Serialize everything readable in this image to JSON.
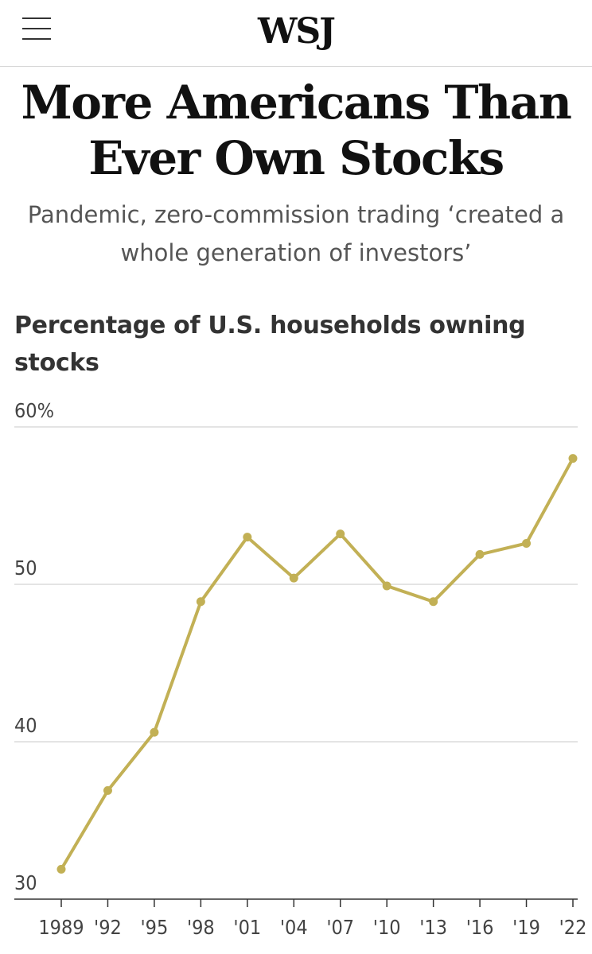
{
  "header": {
    "logo_text": "WSJ",
    "menu_icon": "hamburger-menu-icon"
  },
  "article": {
    "headline": "More Americans Than Ever Own Stocks",
    "dek": "Pandemic, zero-commission trading ‘created a whole generation of investors’"
  },
  "colors": {
    "line": "#c2b055",
    "grid": "#dcdcdc",
    "axis": "#333333"
  },
  "chart_data": {
    "type": "line",
    "title": "Percentage of U.S. households owning stocks",
    "xlabel": "",
    "ylabel": "",
    "x": [
      1989,
      1992,
      1995,
      1998,
      2001,
      2004,
      2007,
      2010,
      2013,
      2016,
      2019,
      2022
    ],
    "categories": [
      "1989",
      "'92",
      "'95",
      "'98",
      "'01",
      "'04",
      "'07",
      "'10",
      "'13",
      "'16",
      "'19",
      "'22"
    ],
    "values": [
      31.9,
      36.9,
      40.6,
      48.9,
      53.0,
      50.4,
      53.2,
      49.9,
      48.9,
      51.9,
      52.6,
      58.0
    ],
    "y_ticks": [
      {
        "value": 60,
        "label": "60%"
      },
      {
        "value": 50,
        "label": "50"
      },
      {
        "value": 40,
        "label": "40"
      },
      {
        "value": 30,
        "label": "30"
      }
    ],
    "ylim": [
      30,
      60
    ],
    "grid": true,
    "markers": true
  }
}
